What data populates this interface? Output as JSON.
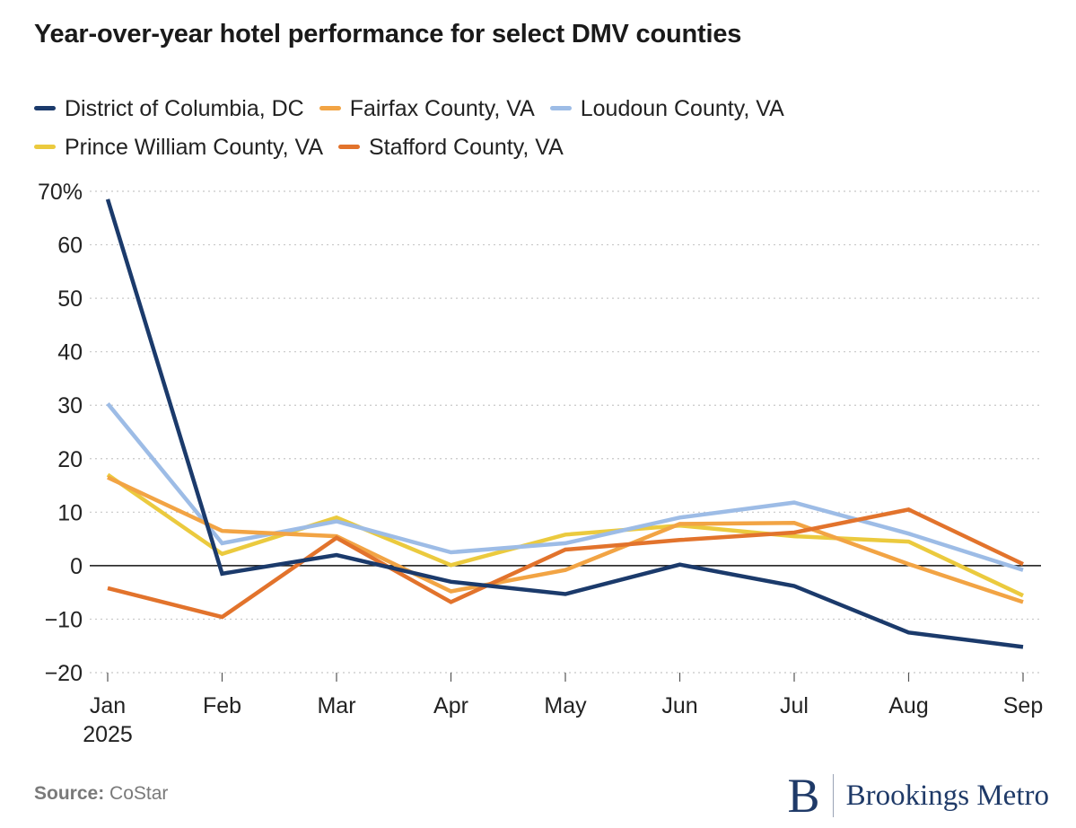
{
  "title": "Year-over-year hotel performance for select DMV counties",
  "source_label": "Source:",
  "source_value": "CoStar",
  "logo": {
    "mark": "B",
    "text": "Brookings Metro"
  },
  "chart_data": {
    "type": "line",
    "title": "Year-over-year hotel performance for select DMV counties",
    "categories": [
      "Jan",
      "Feb",
      "Mar",
      "Apr",
      "May",
      "Jun",
      "Jul",
      "Aug",
      "Sep"
    ],
    "category_sublabels": [
      "2025",
      "",
      "",
      "",
      "",
      "",
      "",
      "",
      ""
    ],
    "ylim": [
      -20,
      70
    ],
    "yticks": [
      70,
      60,
      50,
      40,
      30,
      20,
      10,
      0,
      -10,
      -20
    ],
    "ytick_labels": [
      "70%",
      "60",
      "50",
      "40",
      "30",
      "20",
      "10",
      "0",
      "−10",
      "−20"
    ],
    "grid": "dotted-horizontal",
    "legend_position": "top",
    "series": [
      {
        "name": "District of Columbia, DC",
        "color": "#1b3a6b",
        "values": [
          68.5,
          -1.5,
          2,
          -3,
          -5.3,
          0.2,
          -3.8,
          -12.5,
          -15.2
        ]
      },
      {
        "name": "Fairfax County, VA",
        "color": "#f2a444",
        "values": [
          16.5,
          6.5,
          5.5,
          -4.8,
          -0.8,
          7.8,
          8,
          0.3,
          -6.8
        ]
      },
      {
        "name": "Loudoun County, VA",
        "color": "#9dbce6",
        "values": [
          30.3,
          4.2,
          8.3,
          2.5,
          4.2,
          9,
          11.8,
          6,
          -0.8
        ]
      },
      {
        "name": "Prince William County, VA",
        "color": "#ebca3e",
        "values": [
          17,
          2.2,
          9,
          0.1,
          5.8,
          7.5,
          5.5,
          4.5,
          -5.6
        ]
      },
      {
        "name": "Stafford County, VA",
        "color": "#e2732c",
        "values": [
          -4.2,
          -9.6,
          5.2,
          -6.8,
          3,
          4.8,
          6.2,
          10.5,
          0.3
        ]
      }
    ]
  }
}
